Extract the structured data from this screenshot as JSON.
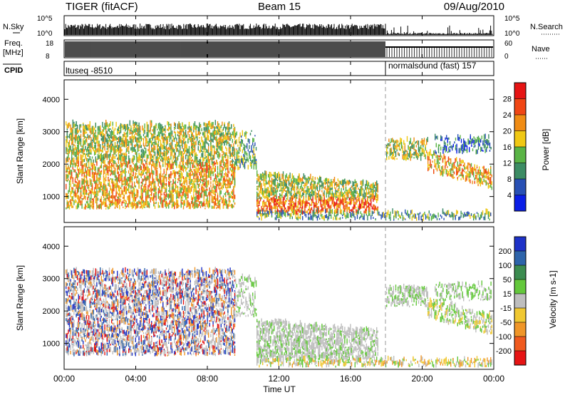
{
  "header": {
    "radar": "TIGER (fitACF)",
    "beam": "Beam 15",
    "date": "09/Aug/2010"
  },
  "panels": {
    "nsky": {
      "label": "N.Sky",
      "ytick_top": "10^5",
      "ytick_bottom": "10^0"
    },
    "nsearch": {
      "label": "N.Search",
      "ytick_top": "10^5",
      "ytick_bottom": "10^0"
    },
    "freq": {
      "label_line1": "Freq.",
      "label_line2": "[MHz]",
      "ytick_top": "18",
      "ytick_bottom": "8"
    },
    "nave": {
      "label": "Nave",
      "ytick_top": "60",
      "ytick_bottom": "0"
    },
    "cpid": {
      "label": "CPID",
      "segments": [
        "ltuseq -8510",
        "normalsound (fast) 157"
      ]
    }
  },
  "chart_data": [
    {
      "type": "heatmap",
      "name": "power",
      "ylabel": "Slant Range [km]",
      "yticks": [
        "1000",
        "2000",
        "3000",
        "4000"
      ],
      "ylim": [
        200,
        4600
      ],
      "colorbar": {
        "label": "Power [dB]",
        "ticks": [
          "4",
          "8",
          "12",
          "16",
          "20",
          "24",
          "28"
        ],
        "range": [
          0,
          32
        ],
        "colors": [
          "#0a1ee6",
          "#2850b4",
          "#3c8c64",
          "#5ab446",
          "#f0c814",
          "#f08c14",
          "#f04614",
          "#e61414"
        ]
      }
    },
    {
      "type": "heatmap",
      "name": "velocity",
      "ylabel": "Slant Range [km]",
      "yticks": [
        "1000",
        "2000",
        "3000",
        "4000"
      ],
      "ylim": [
        200,
        4600
      ],
      "colorbar": {
        "label": "Velocity [m s-1]",
        "ticks": [
          "200",
          "100",
          "50",
          "15",
          "-15",
          "-50",
          "-100",
          "-200"
        ],
        "range": [
          -250,
          250
        ],
        "colors": [
          "#1e32c8",
          "#2d64aa",
          "#3c8c50",
          "#64c83c",
          "#bebebe",
          "#f0c832",
          "#f09628",
          "#f05a1e",
          "#e61414"
        ]
      }
    }
  ],
  "time_axis": {
    "label": "Time UT",
    "ticks": [
      "00:00",
      "04:00",
      "08:00",
      "12:00",
      "16:00",
      "20:00",
      "00:00"
    ]
  }
}
